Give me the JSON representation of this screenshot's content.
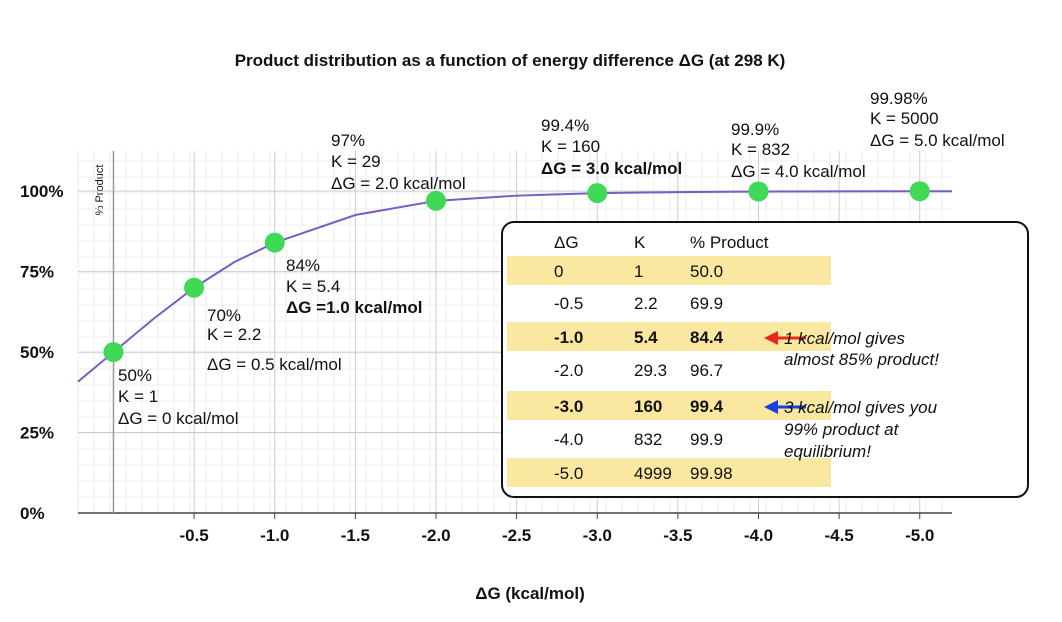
{
  "chart_data": {
    "type": "scatter",
    "title": "Product distribution as a function of energy difference ΔG (at 298 K)",
    "x_label": "ΔG (kcal/mol)",
    "y_label": "% Product",
    "xlim": [
      0.22,
      -5.2
    ],
    "ylim": [
      0,
      110
    ],
    "xticks": [
      -0.5,
      {
        "value": -1,
        "label": "-1.0"
      },
      -1.5,
      {
        "value": -2,
        "label": "-2.0"
      },
      -2.5,
      {
        "value": -3,
        "label": "-3.0"
      },
      -3.5,
      {
        "value": -4,
        "label": "-4.0"
      },
      -4.5,
      {
        "value": -5,
        "label": "-5.0"
      }
    ],
    "yticks": [
      {
        "value": 0,
        "label": "0%"
      },
      {
        "value": 25,
        "label": "25%"
      },
      {
        "value": 50,
        "label": "50%"
      },
      {
        "value": 75,
        "label": "75%"
      },
      {
        "value": 100,
        "label": "100%"
      }
    ],
    "grid": true,
    "curve": {
      "color": "#7a5cc4",
      "x": [
        0.22,
        0,
        -0.25,
        -0.5,
        -0.75,
        -1,
        -1.5,
        -2,
        -2.5,
        -3,
        -3.5,
        -4,
        -5,
        -5.2
      ],
      "values": [
        40.8,
        50,
        60.4,
        70,
        78,
        84,
        92.6,
        97,
        98.6,
        99.4,
        99.7,
        99.9,
        99.98,
        99.98
      ]
    },
    "points": {
      "color": "#3fd957",
      "x": [
        0,
        -0.5,
        -1,
        -2,
        -3,
        -4,
        -5
      ],
      "values": [
        50,
        70,
        84,
        97,
        99.4,
        99.9,
        99.98
      ]
    },
    "annotations": [
      {
        "lines": [
          "50%",
          "K = 1",
          "ΔG = 0 kcal/mol"
        ],
        "bold": false
      },
      {
        "lines": [
          "70%",
          "K = 2.2",
          "ΔG = 0.5 kcal/mol"
        ],
        "bold": false
      },
      {
        "lines": [
          "84%",
          "K = 5.4",
          "ΔG =1.0 kcal/mol"
        ],
        "bold": true
      },
      {
        "lines": [
          "97%",
          "K = 29",
          "ΔG = 2.0 kcal/mol"
        ],
        "bold": false
      },
      {
        "lines": [
          "99.4%",
          "K = 160",
          "ΔG = 3.0 kcal/mol"
        ],
        "bold": true
      },
      {
        "lines": [
          "99.9%",
          "K = 832",
          "ΔG = 4.0 kcal/mol"
        ],
        "bold": false
      },
      {
        "lines": [
          "99.98%",
          "K = 5000",
          "ΔG = 5.0 kcal/mol"
        ],
        "bold": false
      }
    ],
    "table": {
      "header": [
        "ΔG",
        "K",
        "% Product"
      ],
      "rows": [
        [
          "0",
          "1",
          "50.0"
        ],
        [
          "-0.5",
          "2.2",
          "69.9"
        ],
        [
          "-1.0",
          "5.4",
          "84.4"
        ],
        [
          "-2.0",
          "29.3",
          "96.7"
        ],
        [
          "-3.0",
          "160",
          "99.4"
        ],
        [
          "-4.0",
          "832",
          "99.9"
        ],
        [
          "-5.0",
          "4999",
          "99.98"
        ]
      ]
    },
    "notes": [
      {
        "lines": [
          "1 kcal/mol gives",
          "almost 85% product!"
        ],
        "color": "#e8281c"
      },
      {
        "lines": [
          "3 kcal/mol gives you",
          "99% product at",
          "equilibrium!"
        ],
        "color": "#1a3ee0"
      }
    ]
  }
}
